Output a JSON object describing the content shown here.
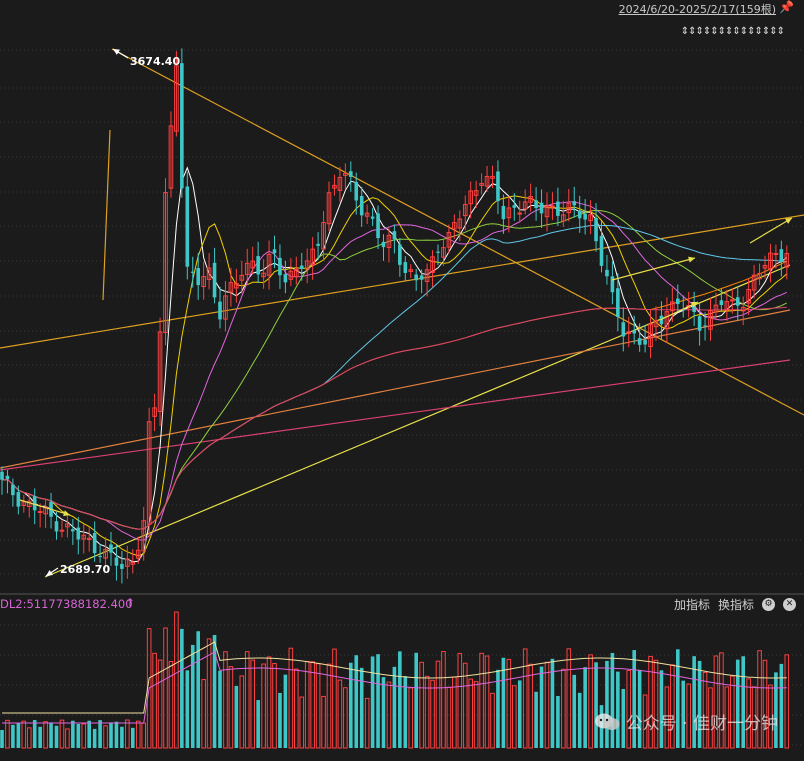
{
  "header": {
    "range_label": "2024/6/20-2025/2/17(159根)",
    "arrows": "⇕⇕⇕⇕⇕⇕⇕⇕⇕⇕⇕⇕⇕⇕"
  },
  "volume_panel": {
    "title": "DL2:51177388182.400",
    "arrow": "↑",
    "add_indicator": "加指标",
    "switch_indicator": "换指标"
  },
  "watermark": "公众号 · 佳财一分钟",
  "colors": {
    "background": "#1b1b1b",
    "up": "#ff4040",
    "down": "#3fc7c7",
    "grid": "#3a3a3a"
  },
  "chart_data": {
    "type": "candlestick",
    "title": "",
    "date_range": "2024/6/20-2025/2/17",
    "bar_count": 159,
    "annotations": [
      {
        "label": "3674.40",
        "kind": "high",
        "value": 3674.4
      },
      {
        "label": "2689.70",
        "kind": "low",
        "value": 2689.7
      }
    ],
    "ylim": [
      2670,
      3680
    ],
    "grid": true,
    "volume_indicator": {
      "name": "DL2",
      "value": 51177388182.4
    }
  }
}
